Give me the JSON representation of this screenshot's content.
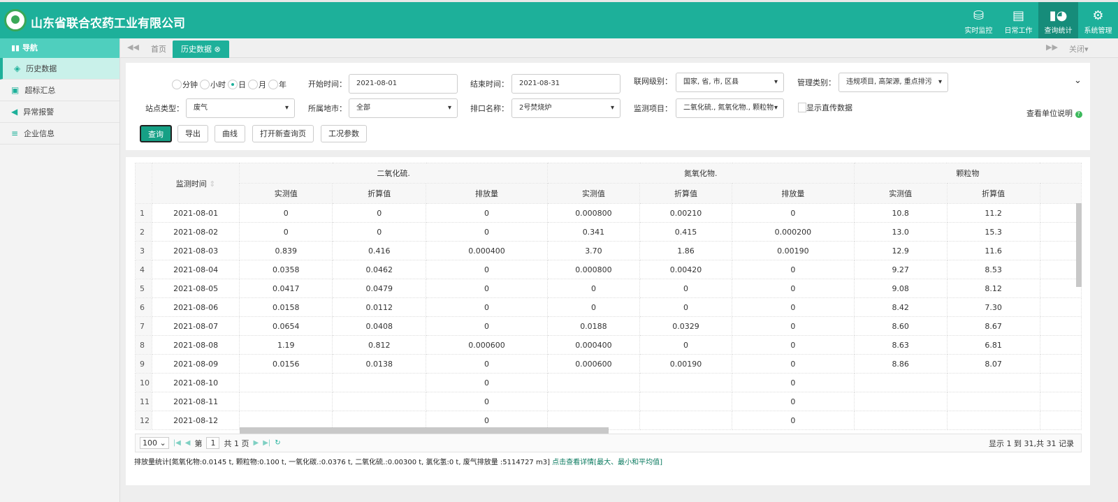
{
  "app": {
    "title": "山东省联合农药工业有限公司"
  },
  "topnav": [
    {
      "label": "实时监控",
      "icon": "database-icon"
    },
    {
      "label": "日常工作",
      "icon": "cabinet-icon"
    },
    {
      "label": "查询统计",
      "icon": "chart-icon",
      "active": true
    },
    {
      "label": "系统管理",
      "icon": "gears-icon"
    }
  ],
  "sidebar": {
    "header": "导航",
    "items": [
      {
        "label": "历史数据",
        "icon": "layers-icon",
        "active": true
      },
      {
        "label": "超标汇总",
        "icon": "clipboard-icon"
      },
      {
        "label": "异常报警",
        "icon": "speaker-icon"
      },
      {
        "label": "企业信息",
        "icon": "list-icon"
      }
    ]
  },
  "tabs": {
    "home": "首页",
    "active": "历史数据",
    "close": "关闭"
  },
  "filters": {
    "granularity": [
      "分钟",
      "小时",
      "日",
      "月",
      "年"
    ],
    "granularity_selected": "日",
    "start_label": "开始时间：",
    "start_value": "2021-08-01",
    "end_label": "结束时间：",
    "end_value": "2021-08-31",
    "network_label": "联网级别：",
    "network_value": "国家, 省, 市, 区县",
    "mgmt_label": "管理类别：",
    "mgmt_value": "违规项目, 高架源, 重点排污",
    "station_label": "站点类型：",
    "station_value": "废气",
    "city_label": "所属地市：",
    "city_value": "全部",
    "outlet_label": "排口名称：",
    "outlet_value": "2号焚烧炉",
    "items_label": "监测项目：",
    "items_value": "二氧化硫., 氮氧化物., 颗粒物",
    "direct_label": "显示直传数据",
    "direct_checked": false,
    "unit_link": "查看单位说明"
  },
  "buttons": {
    "query": "查询",
    "export": "导出",
    "curve": "曲线",
    "new_page": "打开新查询页",
    "params": "工况参数"
  },
  "table": {
    "time_header": "监测时间",
    "groups": [
      "二氧化硫.",
      "氮氧化物.",
      "颗粒物"
    ],
    "sub": [
      "实测值",
      "折算值",
      "排放量",
      "实测值",
      "折算值",
      "排放量",
      "实测值",
      "折算值"
    ],
    "rows": [
      [
        "1",
        "2021-08-01",
        "0",
        "0",
        "0",
        "0.000800",
        "0.00210",
        "0",
        "10.8",
        "11.2"
      ],
      [
        "2",
        "2021-08-02",
        "0",
        "0",
        "0",
        "0.341",
        "0.415",
        "0.000200",
        "13.0",
        "15.3"
      ],
      [
        "3",
        "2021-08-03",
        "0.839",
        "0.416",
        "0.000400",
        "3.70",
        "1.86",
        "0.00190",
        "12.9",
        "11.6"
      ],
      [
        "4",
        "2021-08-04",
        "0.0358",
        "0.0462",
        "0",
        "0.000800",
        "0.00420",
        "0",
        "9.27",
        "8.53"
      ],
      [
        "5",
        "2021-08-05",
        "0.0417",
        "0.0479",
        "0",
        "0",
        "0",
        "0",
        "9.08",
        "8.12"
      ],
      [
        "6",
        "2021-08-06",
        "0.0158",
        "0.0112",
        "0",
        "0",
        "0",
        "0",
        "8.42",
        "7.30"
      ],
      [
        "7",
        "2021-08-07",
        "0.0654",
        "0.0408",
        "0",
        "0.0188",
        "0.0329",
        "0",
        "8.60",
        "8.67"
      ],
      [
        "8",
        "2021-08-08",
        "1.19",
        "0.812",
        "0.000600",
        "0.000400",
        "0",
        "0",
        "8.63",
        "6.81"
      ],
      [
        "9",
        "2021-08-09",
        "0.0156",
        "0.0138",
        "0",
        "0.000600",
        "0.00190",
        "0",
        "8.86",
        "8.07"
      ],
      [
        "10",
        "2021-08-10",
        "",
        "",
        "0",
        "",
        "",
        "0",
        "",
        ""
      ],
      [
        "11",
        "2021-08-11",
        "",
        "",
        "0",
        "",
        "",
        "0",
        "",
        ""
      ],
      [
        "12",
        "2021-08-12",
        "",
        "",
        "0",
        "",
        "",
        "0",
        "",
        ""
      ]
    ]
  },
  "pager": {
    "page_size": "100",
    "page_prefix": "第",
    "page": "1",
    "total_pages": "共 1 页",
    "info": "显示 1 到 31,共 31 记录"
  },
  "summary": {
    "text": "排放量统计[氮氧化物:0.0145 t, 颗粒物:0.100 t, 一氧化碳.:0.0376 t, 二氧化硫.:0.00300 t, 氯化氢:0 t, 废气排放量 :5114727 m3]",
    "link": "点击查看详情[最大、最小和平均值]"
  },
  "colors": {
    "brand": "#1db09a",
    "primary_button": "#16a085"
  }
}
